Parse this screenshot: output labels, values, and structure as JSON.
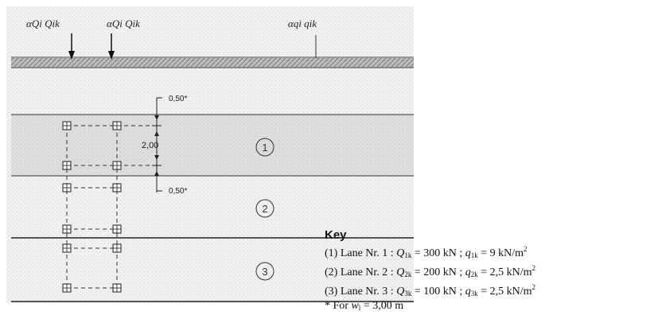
{
  "load_labels": {
    "axle_1": "αQi Qik",
    "axle_2": "αQi Qik",
    "udl": "αqi qik"
  },
  "dimensions": {
    "top_offset": "0,50*",
    "spacing": "2,00",
    "bottom_offset": "0,50*"
  },
  "lanes": [
    {
      "number": "1"
    },
    {
      "number": "2"
    },
    {
      "number": "3"
    }
  ],
  "key": {
    "title": "Key",
    "entries": [
      {
        "prefix": "(1) Lane Nr. 1 : ",
        "Q_sym": "Q",
        "Q_sub": "1k",
        "Q_val": " = 300 kN ; ",
        "q_sym": "q",
        "q_sub": "1k",
        "q_val": " = 9 kN/m",
        "q_sup": "2"
      },
      {
        "prefix": "(2) Lane Nr. 2 : ",
        "Q_sym": "Q",
        "Q_sub": "2k",
        "Q_val": " = 200 kN ; ",
        "q_sym": "q",
        "q_sub": "2k",
        "q_val": " = 2,5 kN/m",
        "q_sup": "2"
      },
      {
        "prefix": "(3) Lane Nr. 3 : ",
        "Q_sym": "Q",
        "Q_sub": "3k",
        "Q_val": " = 100 kN ; ",
        "q_sym": "q",
        "q_sub": "3k",
        "q_val": " = 2,5 kN/m",
        "q_sup": "2"
      }
    ],
    "footnote_prefix": "* For ",
    "footnote_var": "w",
    "footnote_sub": "l",
    "footnote_val": " = 3,00 m"
  }
}
